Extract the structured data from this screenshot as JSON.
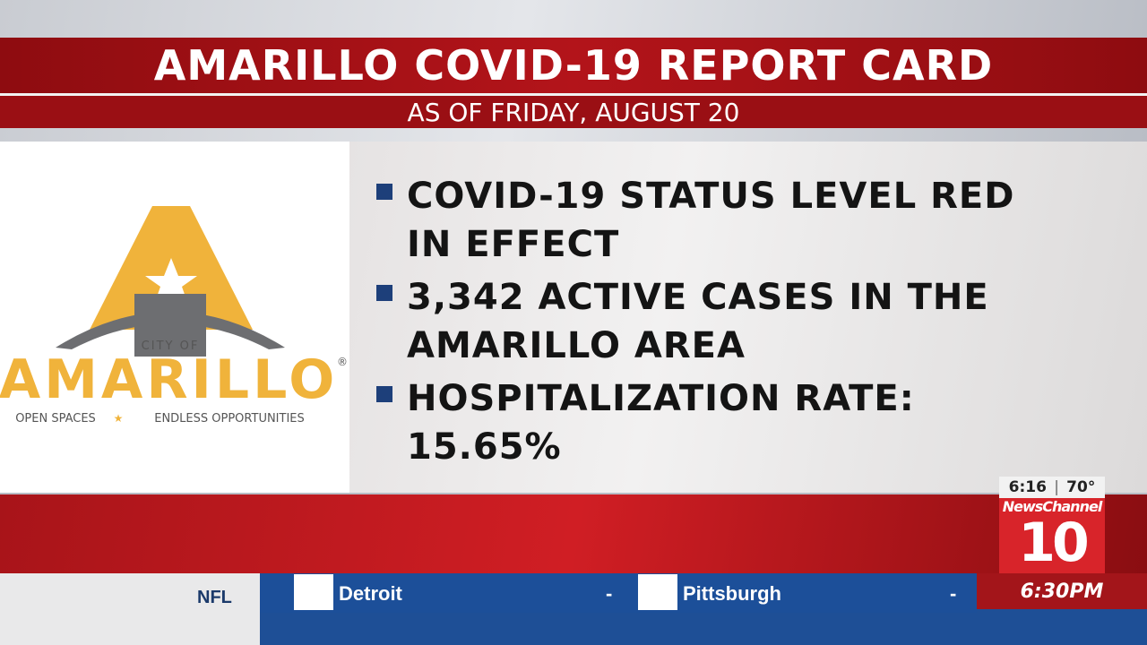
{
  "header": {
    "title": "AMARILLO COVID-19 REPORT CARD",
    "subtitle": "AS OF FRIDAY, AUGUST 20"
  },
  "logo": {
    "city_of": "CITY OF",
    "name": "AMARILLO",
    "registered": "®",
    "tagline_left": "OPEN SPACES",
    "tagline_star": "★",
    "tagline_right": "ENDLESS OPPORTUNITIES"
  },
  "bullets": [
    "COVID-19 STATUS LEVEL RED IN EFFECT",
    "3,342 ACTIVE CASES IN THE AMARILLO AREA",
    "HOSPITALIZATION RATE: 15.65%"
  ],
  "bug": {
    "time": "6:16",
    "temperature": "70°",
    "station": "NewsChannel",
    "number": "10"
  },
  "ticker": {
    "league": "NFL",
    "team_1": "Detroit",
    "score_1": "-",
    "team_2": "Pittsburgh",
    "score_2": "-",
    "game_time": "6:30PM"
  }
}
